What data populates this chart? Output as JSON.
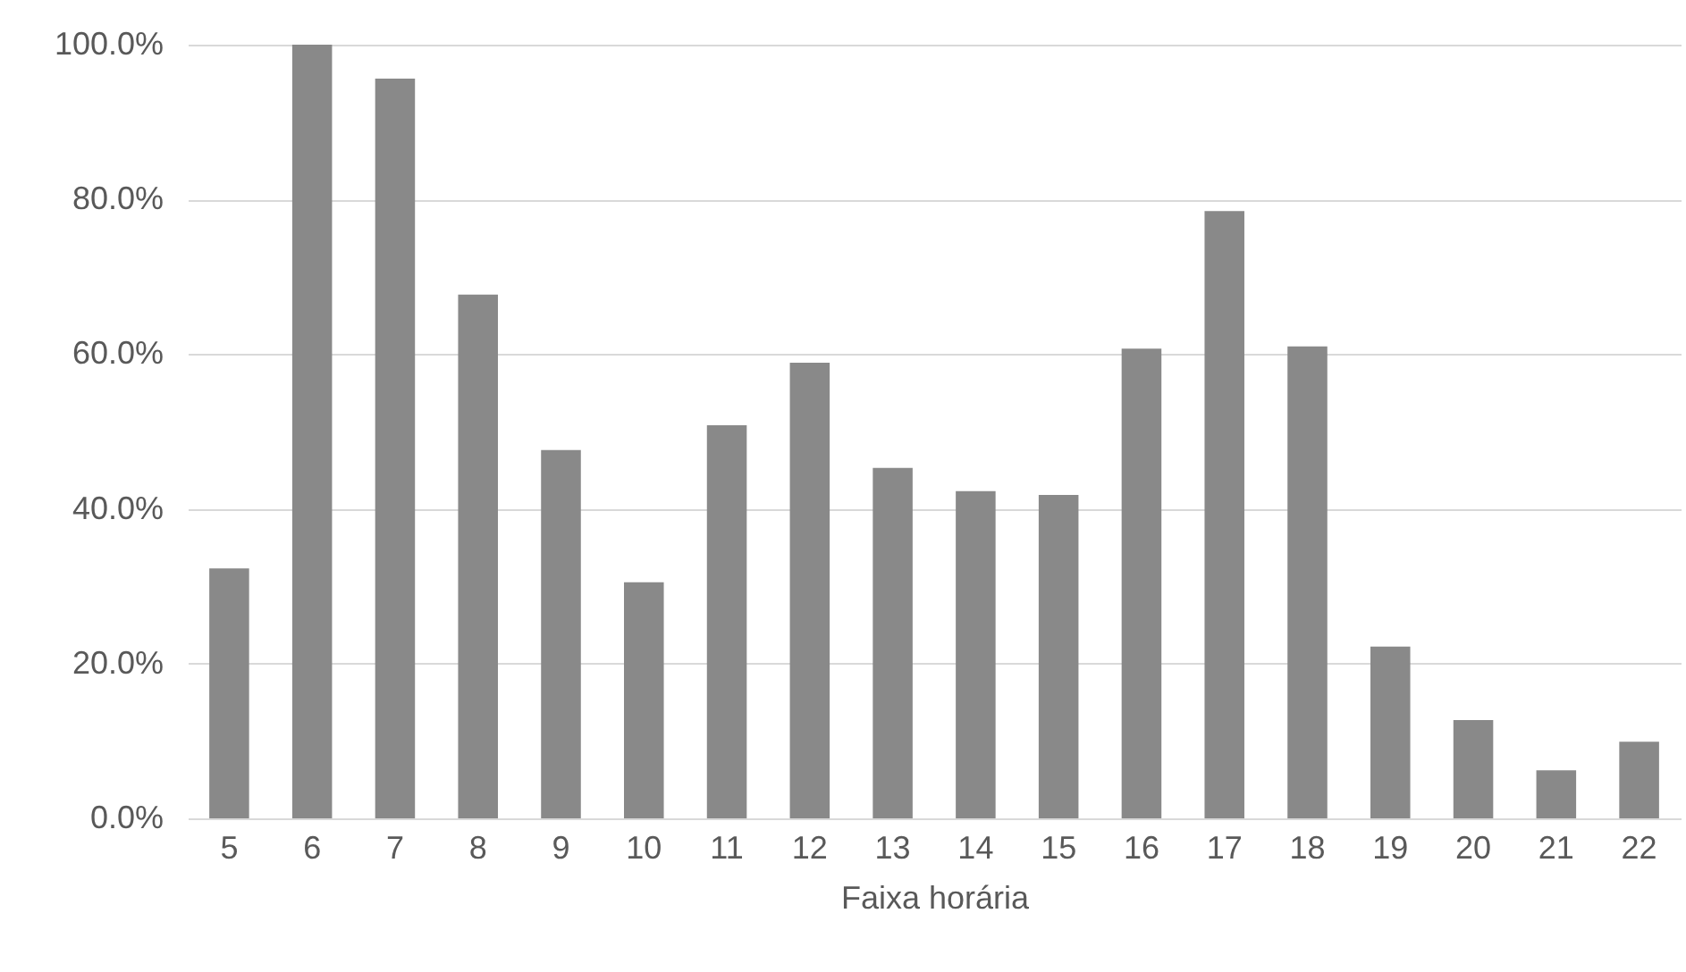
{
  "chart_data": {
    "type": "bar",
    "xlabel": "Faixa horária",
    "categories": [
      "5",
      "6",
      "7",
      "8",
      "9",
      "10",
      "11",
      "12",
      "13",
      "14",
      "15",
      "16",
      "17",
      "18",
      "19",
      "20",
      "21",
      "22"
    ],
    "values": [
      32.3,
      100,
      95.6,
      67.7,
      47.6,
      30.5,
      50.8,
      58.9,
      45.3,
      42.3,
      41.8,
      60.7,
      78.5,
      61.0,
      22.2,
      12.7,
      6.2,
      9.9
    ],
    "color": "#898989",
    "ylim": [
      0,
      100
    ],
    "yticks": [
      {
        "value": 0,
        "label": "0.0%"
      },
      {
        "value": 20,
        "label": "20.0%"
      },
      {
        "value": 40,
        "label": "40.0%"
      },
      {
        "value": 60,
        "label": "60.0%"
      },
      {
        "value": 80,
        "label": "80.0%"
      },
      {
        "value": 100,
        "label": "100.0%"
      }
    ],
    "grid": "y"
  }
}
